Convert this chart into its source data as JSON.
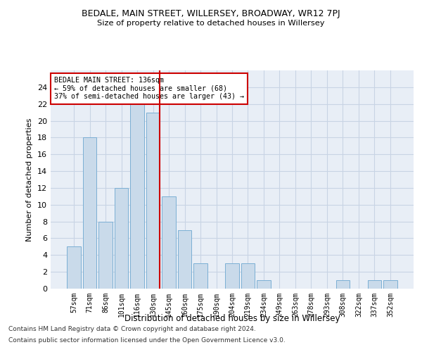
{
  "title": "BEDALE, MAIN STREET, WILLERSEY, BROADWAY, WR12 7PJ",
  "subtitle": "Size of property relative to detached houses in Willersey",
  "xlabel": "Distribution of detached houses by size in Willersey",
  "ylabel": "Number of detached properties",
  "categories": [
    "57sqm",
    "71sqm",
    "86sqm",
    "101sqm",
    "116sqm",
    "130sqm",
    "145sqm",
    "160sqm",
    "175sqm",
    "190sqm",
    "204sqm",
    "219sqm",
    "234sqm",
    "249sqm",
    "263sqm",
    "278sqm",
    "293sqm",
    "308sqm",
    "322sqm",
    "337sqm",
    "352sqm"
  ],
  "values": [
    5,
    18,
    8,
    12,
    22,
    21,
    11,
    7,
    3,
    0,
    3,
    3,
    1,
    0,
    0,
    0,
    0,
    1,
    0,
    1,
    1
  ],
  "bar_color": "#c9daea",
  "bar_edge_color": "#7bafd4",
  "vline_color": "#cc0000",
  "vline_x_index": 5.42,
  "annotation_text": "BEDALE MAIN STREET: 136sqm\n← 59% of detached houses are smaller (68)\n37% of semi-detached houses are larger (43) →",
  "annotation_box_facecolor": "#ffffff",
  "annotation_box_edgecolor": "#cc0000",
  "grid_color": "#c8d4e4",
  "bg_color": "#e8eef6",
  "footnote1": "Contains HM Land Registry data © Crown copyright and database right 2024.",
  "footnote2": "Contains public sector information licensed under the Open Government Licence v3.0.",
  "ylim": [
    0,
    26
  ],
  "yticks": [
    0,
    2,
    4,
    6,
    8,
    10,
    12,
    14,
    16,
    18,
    20,
    22,
    24
  ]
}
